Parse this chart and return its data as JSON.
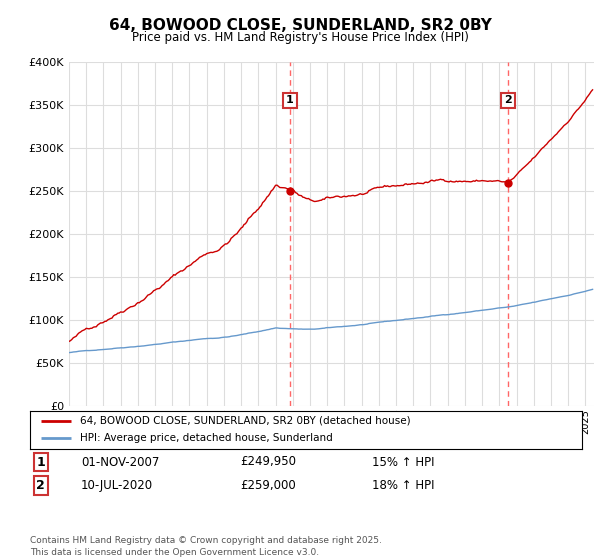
{
  "title": "64, BOWOOD CLOSE, SUNDERLAND, SR2 0BY",
  "subtitle": "Price paid vs. HM Land Registry's House Price Index (HPI)",
  "background_color": "#ffffff",
  "grid_color": "#dddddd",
  "sale1_date": "01-NOV-2007",
  "sale1_price": 249950,
  "sale1_label": "1",
  "sale1_hpi": "15% ↑ HPI",
  "sale2_date": "10-JUL-2020",
  "sale2_price": 259000,
  "sale2_label": "2",
  "sale2_hpi": "18% ↑ HPI",
  "legend_line1": "64, BOWOOD CLOSE, SUNDERLAND, SR2 0BY (detached house)",
  "legend_line2": "HPI: Average price, detached house, Sunderland",
  "footer": "Contains HM Land Registry data © Crown copyright and database right 2025.\nThis data is licensed under the Open Government Licence v3.0.",
  "red_color": "#cc0000",
  "blue_color": "#6699cc",
  "dashed_color": "#ff6666",
  "ylim_min": 0,
  "ylim_max": 400000,
  "start_year": 1995,
  "end_year": 2025
}
